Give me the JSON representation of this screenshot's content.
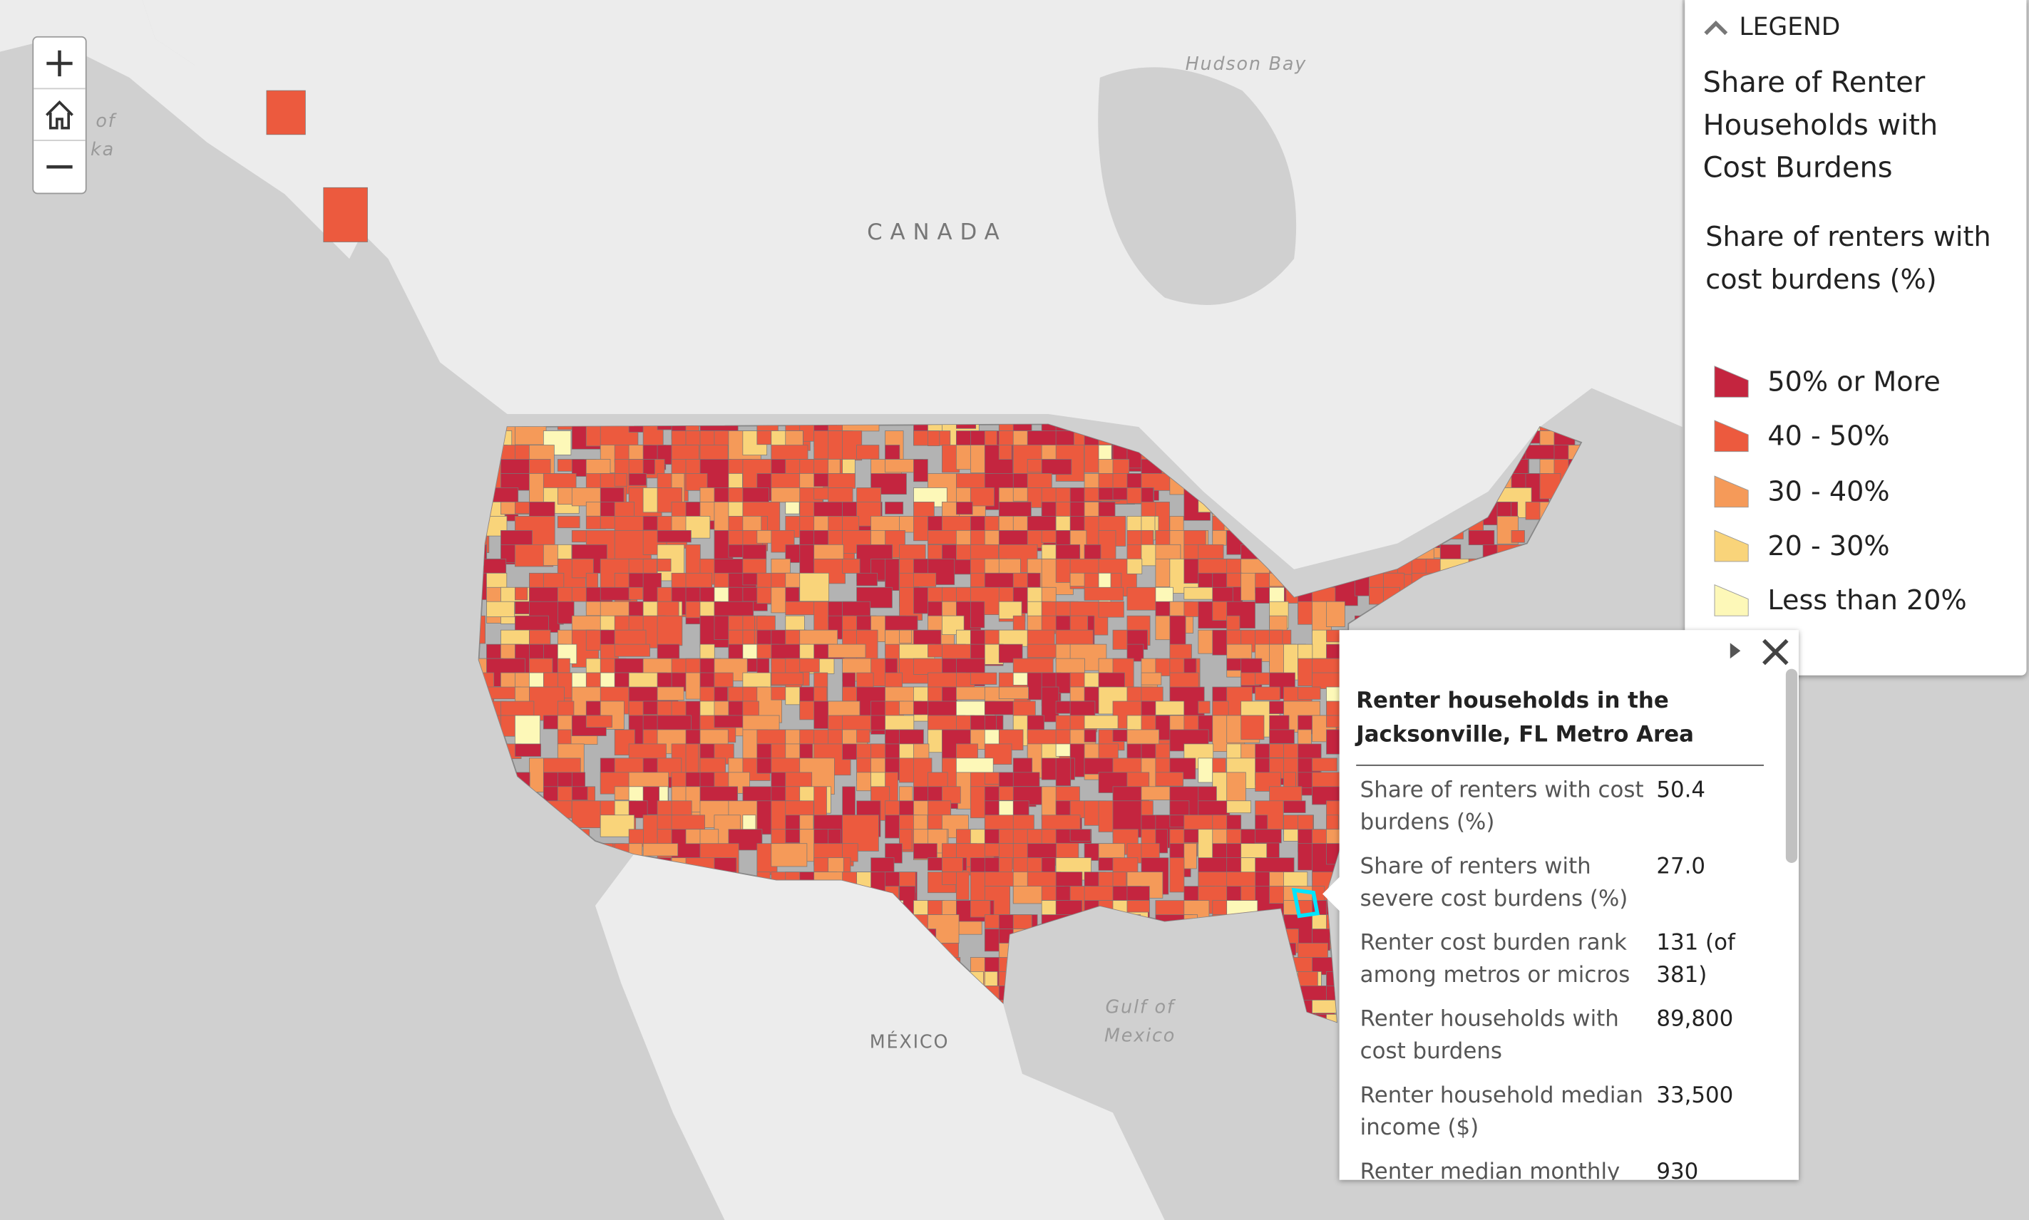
{
  "map_labels": {
    "hudson_bay": "Hudson Bay",
    "canada": "CANADA",
    "gulf": "Gulf of Mexico",
    "mexico": "MÉXICO",
    "alaska_fragments": [
      "of",
      "ka"
    ]
  },
  "legend": {
    "header": "LEGEND",
    "layer_title": "Share of Renter Households with Cost Burdens",
    "field_title": "Share of renters with cost burdens (%)",
    "items": [
      {
        "label": "50% or More",
        "color": "#c4253f"
      },
      {
        "label": "40 - 50%",
        "color": "#ec5a3e"
      },
      {
        "label": "30 - 40%",
        "color": "#f59a59"
      },
      {
        "label": "20 - 30%",
        "color": "#f9d47a"
      },
      {
        "label": "Less than 20%",
        "color": "#fdf8b8"
      }
    ]
  },
  "popup": {
    "title": "Renter households in the Jacksonville, FL Metro Area",
    "rows": [
      [
        "Share of renters with cost burdens (%)",
        "50.4"
      ],
      [
        "Share of renters with severe cost burdens (%)",
        "27.0"
      ],
      [
        "Renter cost burden rank among metros or micros",
        "131 (of 381)"
      ],
      [
        "Renter households with cost burdens",
        "89,800"
      ],
      [
        "Renter household median income ($)",
        "33,500"
      ],
      [
        "Renter median monthly",
        "930"
      ]
    ]
  }
}
